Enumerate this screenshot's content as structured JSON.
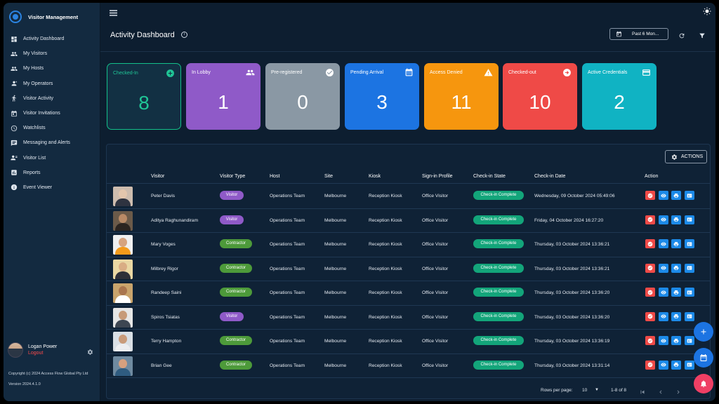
{
  "sidebar": {
    "brand": "Visitor Management",
    "items": [
      {
        "label": "Activity Dashboard",
        "icon": "dashboard-icon"
      },
      {
        "label": "My Visitors",
        "icon": "people-icon"
      },
      {
        "label": "My Hosts",
        "icon": "people-icon"
      },
      {
        "label": "My Operators",
        "icon": "operator-icon"
      },
      {
        "label": "Visitor Activity",
        "icon": "walk-icon"
      },
      {
        "label": "Visitor Invitations",
        "icon": "calendar-icon"
      },
      {
        "label": "Watchlists",
        "icon": "watchlist-icon"
      },
      {
        "label": "Messaging and Alerts",
        "icon": "message-icon"
      },
      {
        "label": "Visitor List",
        "icon": "visitor-list-icon"
      },
      {
        "label": "Reports",
        "icon": "chart-icon"
      },
      {
        "label": "Event Viewer",
        "icon": "event-icon"
      }
    ],
    "user": {
      "name": "Logan Power",
      "logout": "Logout"
    },
    "copyright": "Copyright (c) 2024 Access Flow Global Pty Ltd",
    "version": "Version 2024.4.1.0"
  },
  "header": {
    "title": "Activity Dashboard",
    "date_range": "Past 6 Mon..."
  },
  "cards": [
    {
      "label": "Checked-In",
      "value": "8",
      "color": "#123043",
      "icon": "plus-circle-icon"
    },
    {
      "label": "In Lobby",
      "value": "1",
      "color": "#8f5ac8",
      "icon": "group-icon"
    },
    {
      "label": "Pre-registered",
      "value": "0",
      "color": "#8a98a4",
      "icon": "check-circle-icon"
    },
    {
      "label": "Pending Arrival",
      "value": "3",
      "color": "#1c74e2",
      "icon": "calendar-grid-icon"
    },
    {
      "label": "Access Denied",
      "value": "11",
      "color": "#f6960e",
      "icon": "warning-icon"
    },
    {
      "label": "Checked-out",
      "value": "10",
      "color": "#ef4a47",
      "icon": "arrow-circle-icon"
    },
    {
      "label": "Active Credentials",
      "value": "2",
      "color": "#10b3c3",
      "icon": "credential-icon"
    }
  ],
  "table": {
    "actions_label": "ACTIONS",
    "headers": [
      "Visitor",
      "Visitor Type",
      "Host",
      "Site",
      "Kiosk",
      "Sign-in Profile",
      "Check-in State",
      "Check-in Date",
      "Action"
    ],
    "rows": [
      {
        "visitor": "Peter Davis",
        "type": "Visitor",
        "host": "Operations Team",
        "site": "Melbourne",
        "kiosk": "Reception Kiosk",
        "profile": "Office Visitor",
        "state": "Check-in Complete",
        "date": "Wednesday, 09 October 2024 05:49:06"
      },
      {
        "visitor": "Aditya Raghunandiram",
        "type": "Visitor",
        "host": "Operations Team",
        "site": "Melbourne",
        "kiosk": "Reception Kiosk",
        "profile": "Office Visitor",
        "state": "Check-in Complete",
        "date": "Friday, 04 October 2024 16:27:20"
      },
      {
        "visitor": "Mary Voges",
        "type": "Contractor",
        "host": "Operations Team",
        "site": "Melbourne",
        "kiosk": "Reception Kiosk",
        "profile": "Office Visitor",
        "state": "Check-in Complete",
        "date": "Thursday, 03 October 2024 13:36:21"
      },
      {
        "visitor": "Milbrey Rigor",
        "type": "Contractor",
        "host": "Operations Team",
        "site": "Melbourne",
        "kiosk": "Reception Kiosk",
        "profile": "Office Visitor",
        "state": "Check-in Complete",
        "date": "Thursday, 03 October 2024 13:36:21"
      },
      {
        "visitor": "Randeep Saini",
        "type": "Contractor",
        "host": "Operations Team",
        "site": "Melbourne",
        "kiosk": "Reception Kiosk",
        "profile": "Office Visitor",
        "state": "Check-in Complete",
        "date": "Thursday, 03 October 2024 13:36:20"
      },
      {
        "visitor": "Spiros Tsiatas",
        "type": "Visitor",
        "host": "Operations Team",
        "site": "Melbourne",
        "kiosk": "Reception Kiosk",
        "profile": "Office Visitor",
        "state": "Check-in Complete",
        "date": "Thursday, 03 October 2024 13:36:20"
      },
      {
        "visitor": "Terry Hampton",
        "type": "Contractor",
        "host": "Operations Team",
        "site": "Melbourne",
        "kiosk": "Reception Kiosk",
        "profile": "Office Visitor",
        "state": "Check-in Complete",
        "date": "Thursday, 03 October 2024 13:36:19"
      },
      {
        "visitor": "Brian Gee",
        "type": "Contractor",
        "host": "Operations Team",
        "site": "Melbourne",
        "kiosk": "Reception Kiosk",
        "profile": "Office Visitor",
        "state": "Check-in Complete",
        "date": "Thursday, 03 October 2024 13:31:14"
      }
    ],
    "type_colors": {
      "Visitor": "#8f5ac8",
      "Contractor": "#4d9a3a"
    },
    "action_icons": [
      "cancel-icon",
      "view-icon",
      "print-icon",
      "badge-icon"
    ],
    "action_colors": [
      "#ef4a47",
      "#1c8ae8",
      "#1c8ae8",
      "#1c8ae8"
    ]
  },
  "pagination": {
    "rows_label": "Rows per page:",
    "rows_value": "10",
    "range": "1-8 of 8"
  }
}
